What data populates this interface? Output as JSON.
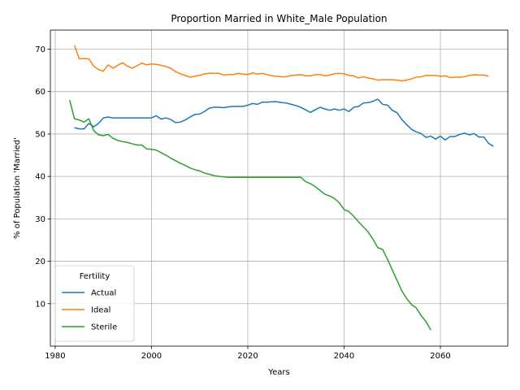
{
  "chart_data": {
    "type": "line",
    "title": "Proportion Married in White_Male Population",
    "xlabel": "Years",
    "ylabel": "% of Population 'Married'",
    "xlim": [
      1979,
      2074
    ],
    "ylim": [
      0,
      74.5
    ],
    "xticks": [
      1980,
      2000,
      2020,
      2040,
      2060
    ],
    "yticks": [
      10,
      20,
      30,
      40,
      50,
      60,
      70
    ],
    "grid": true,
    "legend": {
      "title": "Fertility",
      "placement": "lower-left"
    },
    "series": [
      {
        "name": "Actual",
        "color": "#1f77b4",
        "points": [
          [
            1984,
            51.5
          ],
          [
            1985,
            51.2
          ],
          [
            1986,
            51.2
          ],
          [
            1987,
            52.5
          ],
          [
            1988,
            51.7
          ],
          [
            1989,
            52.5
          ],
          [
            1990,
            53.8
          ],
          [
            1991,
            54.0
          ],
          [
            1992,
            53.8
          ],
          [
            1993,
            53.8
          ],
          [
            1994,
            53.8
          ],
          [
            1995,
            53.8
          ],
          [
            1996,
            53.8
          ],
          [
            1997,
            53.8
          ],
          [
            1998,
            53.8
          ],
          [
            1999,
            53.8
          ],
          [
            2000,
            53.8
          ],
          [
            2001,
            54.3
          ],
          [
            2002,
            53.5
          ],
          [
            2003,
            53.8
          ],
          [
            2004,
            53.4
          ],
          [
            2005,
            52.7
          ],
          [
            2006,
            52.8
          ],
          [
            2007,
            53.3
          ],
          [
            2008,
            54.0
          ],
          [
            2009,
            54.6
          ],
          [
            2010,
            54.7
          ],
          [
            2011,
            55.3
          ],
          [
            2012,
            56.1
          ],
          [
            2013,
            56.3
          ],
          [
            2014,
            56.3
          ],
          [
            2015,
            56.2
          ],
          [
            2016,
            56.4
          ],
          [
            2017,
            56.5
          ],
          [
            2018,
            56.5
          ],
          [
            2019,
            56.5
          ],
          [
            2020,
            56.8
          ],
          [
            2021,
            57.2
          ],
          [
            2022,
            57.0
          ],
          [
            2023,
            57.5
          ],
          [
            2024,
            57.5
          ],
          [
            2025,
            57.6
          ],
          [
            2026,
            57.6
          ],
          [
            2027,
            57.4
          ],
          [
            2028,
            57.3
          ],
          [
            2029,
            57.0
          ],
          [
            2030,
            56.7
          ],
          [
            2031,
            56.3
          ],
          [
            2032,
            55.7
          ],
          [
            2033,
            55.1
          ],
          [
            2034,
            55.7
          ],
          [
            2035,
            56.3
          ],
          [
            2036,
            55.9
          ],
          [
            2037,
            55.6
          ],
          [
            2038,
            55.9
          ],
          [
            2039,
            55.6
          ],
          [
            2040,
            55.9
          ],
          [
            2041,
            55.3
          ],
          [
            2042,
            56.3
          ],
          [
            2043,
            56.5
          ],
          [
            2044,
            57.3
          ],
          [
            2045,
            57.4
          ],
          [
            2046,
            57.7
          ],
          [
            2047,
            58.2
          ],
          [
            2048,
            57.0
          ],
          [
            2049,
            56.8
          ],
          [
            2050,
            55.6
          ],
          [
            2051,
            55.0
          ],
          [
            2052,
            53.4
          ],
          [
            2053,
            52.2
          ],
          [
            2054,
            51.1
          ],
          [
            2055,
            50.5
          ],
          [
            2056,
            50.1
          ],
          [
            2057,
            49.2
          ],
          [
            2058,
            49.5
          ],
          [
            2059,
            48.8
          ],
          [
            2060,
            49.5
          ],
          [
            2061,
            48.6
          ],
          [
            2062,
            49.4
          ],
          [
            2063,
            49.4
          ],
          [
            2064,
            49.9
          ],
          [
            2065,
            50.2
          ],
          [
            2066,
            49.8
          ],
          [
            2067,
            50.1
          ],
          [
            2068,
            49.3
          ],
          [
            2069,
            49.3
          ],
          [
            2070,
            47.8
          ],
          [
            2071,
            47.1
          ]
        ]
      },
      {
        "name": "Ideal",
        "color": "#ff7f0e",
        "points": [
          [
            1984,
            70.9
          ],
          [
            1985,
            67.7
          ],
          [
            1986,
            67.8
          ],
          [
            1987,
            67.7
          ],
          [
            1988,
            66.0
          ],
          [
            1989,
            65.2
          ],
          [
            1990,
            64.8
          ],
          [
            1991,
            66.3
          ],
          [
            1992,
            65.5
          ],
          [
            1993,
            66.2
          ],
          [
            1994,
            66.8
          ],
          [
            1995,
            66.0
          ],
          [
            1996,
            65.5
          ],
          [
            1997,
            66.1
          ],
          [
            1998,
            66.7
          ],
          [
            1999,
            66.3
          ],
          [
            2000,
            66.5
          ],
          [
            2001,
            66.4
          ],
          [
            2002,
            66.2
          ],
          [
            2003,
            65.9
          ],
          [
            2004,
            65.5
          ],
          [
            2005,
            64.7
          ],
          [
            2006,
            64.2
          ],
          [
            2007,
            63.8
          ],
          [
            2008,
            63.4
          ],
          [
            2009,
            63.6
          ],
          [
            2010,
            63.8
          ],
          [
            2011,
            64.2
          ],
          [
            2012,
            64.3
          ],
          [
            2013,
            64.3
          ],
          [
            2014,
            64.3
          ],
          [
            2015,
            63.9
          ],
          [
            2016,
            64.0
          ],
          [
            2017,
            64.0
          ],
          [
            2018,
            64.3
          ],
          [
            2019,
            64.1
          ],
          [
            2020,
            64.0
          ],
          [
            2021,
            64.4
          ],
          [
            2022,
            64.1
          ],
          [
            2023,
            64.3
          ],
          [
            2024,
            64.0
          ],
          [
            2025,
            63.7
          ],
          [
            2026,
            63.6
          ],
          [
            2027,
            63.5
          ],
          [
            2028,
            63.5
          ],
          [
            2029,
            63.8
          ],
          [
            2030,
            63.9
          ],
          [
            2031,
            64.0
          ],
          [
            2032,
            63.7
          ],
          [
            2033,
            63.7
          ],
          [
            2034,
            64.0
          ],
          [
            2035,
            64.0
          ],
          [
            2036,
            63.7
          ],
          [
            2037,
            63.9
          ],
          [
            2038,
            64.2
          ],
          [
            2039,
            64.3
          ],
          [
            2040,
            64.2
          ],
          [
            2041,
            63.8
          ],
          [
            2042,
            63.7
          ],
          [
            2043,
            63.2
          ],
          [
            2044,
            63.5
          ],
          [
            2045,
            63.2
          ],
          [
            2046,
            63.0
          ],
          [
            2047,
            62.7
          ],
          [
            2048,
            62.8
          ],
          [
            2049,
            62.8
          ],
          [
            2050,
            62.8
          ],
          [
            2051,
            62.7
          ],
          [
            2052,
            62.5
          ],
          [
            2053,
            62.7
          ],
          [
            2054,
            63.0
          ],
          [
            2055,
            63.4
          ],
          [
            2056,
            63.5
          ],
          [
            2057,
            63.8
          ],
          [
            2058,
            63.8
          ],
          [
            2059,
            63.8
          ],
          [
            2060,
            63.6
          ],
          [
            2061,
            63.7
          ],
          [
            2062,
            63.3
          ],
          [
            2063,
            63.4
          ],
          [
            2064,
            63.4
          ],
          [
            2065,
            63.5
          ],
          [
            2066,
            63.8
          ],
          [
            2067,
            64.0
          ],
          [
            2068,
            63.9
          ],
          [
            2069,
            63.9
          ],
          [
            2070,
            63.6
          ]
        ]
      },
      {
        "name": "Sterile",
        "color": "#2ca02c",
        "points": [
          [
            1983,
            58.0
          ],
          [
            1984,
            53.6
          ],
          [
            1985,
            53.3
          ],
          [
            1986,
            52.8
          ],
          [
            1987,
            53.6
          ],
          [
            1988,
            50.8
          ],
          [
            1989,
            49.8
          ],
          [
            1990,
            49.6
          ],
          [
            1991,
            49.9
          ],
          [
            1992,
            49.0
          ],
          [
            1993,
            48.5
          ],
          [
            1994,
            48.2
          ],
          [
            1995,
            48.0
          ],
          [
            1996,
            47.7
          ],
          [
            1997,
            47.4
          ],
          [
            1998,
            47.4
          ],
          [
            1999,
            46.5
          ],
          [
            2000,
            46.4
          ],
          [
            2001,
            46.2
          ],
          [
            2002,
            45.6
          ],
          [
            2003,
            45.0
          ],
          [
            2004,
            44.3
          ],
          [
            2005,
            43.7
          ],
          [
            2006,
            43.1
          ],
          [
            2007,
            42.6
          ],
          [
            2008,
            42.0
          ],
          [
            2009,
            41.6
          ],
          [
            2010,
            41.3
          ],
          [
            2011,
            40.8
          ],
          [
            2012,
            40.5
          ],
          [
            2013,
            40.2
          ],
          [
            2014,
            40.0
          ],
          [
            2015,
            39.9
          ],
          [
            2016,
            39.8
          ],
          [
            2017,
            39.8
          ],
          [
            2018,
            39.8
          ],
          [
            2019,
            39.8
          ],
          [
            2020,
            39.8
          ],
          [
            2021,
            39.8
          ],
          [
            2022,
            39.8
          ],
          [
            2023,
            39.8
          ],
          [
            2024,
            39.8
          ],
          [
            2025,
            39.8
          ],
          [
            2026,
            39.8
          ],
          [
            2027,
            39.8
          ],
          [
            2028,
            39.8
          ],
          [
            2029,
            39.8
          ],
          [
            2030,
            39.8
          ],
          [
            2031,
            39.8
          ],
          [
            2032,
            38.8
          ],
          [
            2033,
            38.3
          ],
          [
            2034,
            37.6
          ],
          [
            2035,
            36.7
          ],
          [
            2036,
            35.8
          ],
          [
            2037,
            35.4
          ],
          [
            2038,
            34.8
          ],
          [
            2039,
            33.8
          ],
          [
            2040,
            32.2
          ],
          [
            2041,
            31.7
          ],
          [
            2042,
            30.6
          ],
          [
            2043,
            29.3
          ],
          [
            2044,
            28.1
          ],
          [
            2045,
            26.9
          ],
          [
            2046,
            25.2
          ],
          [
            2047,
            23.2
          ],
          [
            2048,
            22.8
          ],
          [
            2049,
            20.5
          ],
          [
            2050,
            18.0
          ],
          [
            2051,
            15.5
          ],
          [
            2052,
            13.0
          ],
          [
            2053,
            11.2
          ],
          [
            2054,
            9.8
          ],
          [
            2055,
            9.0
          ],
          [
            2056,
            7.2
          ],
          [
            2057,
            5.8
          ],
          [
            2058,
            3.8
          ]
        ]
      }
    ]
  }
}
